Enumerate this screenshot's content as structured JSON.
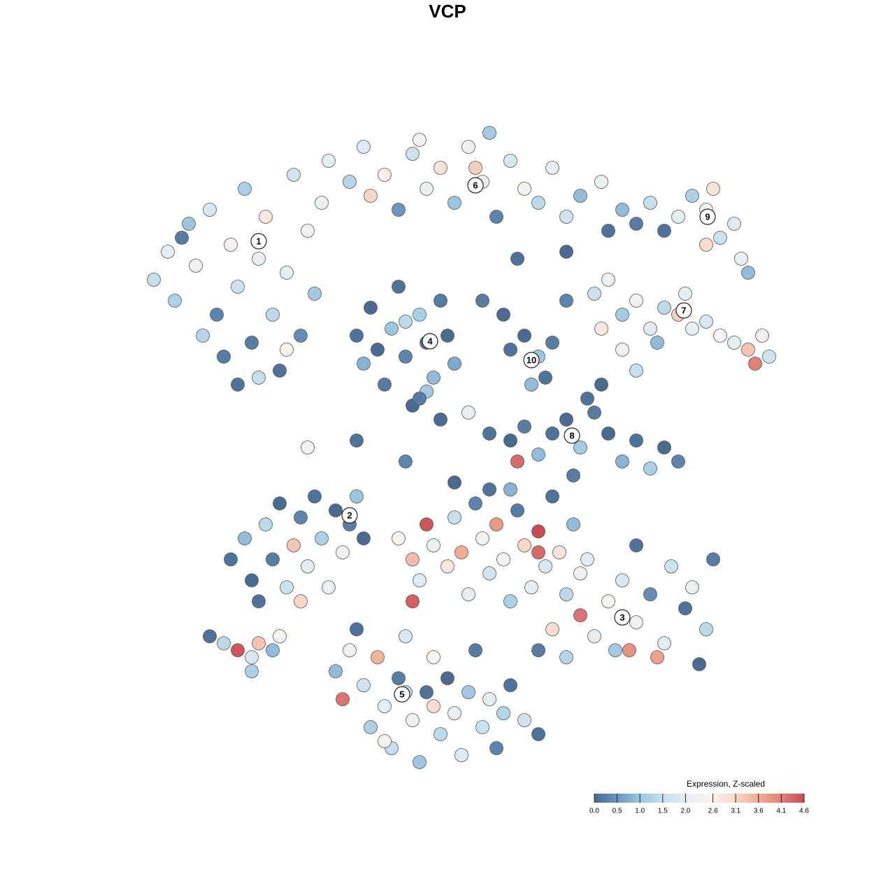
{
  "chart_data": {
    "type": "scatter",
    "title": "VCP",
    "xlim": [
      0,
      100
    ],
    "ylim": [
      0,
      100
    ],
    "x": [
      7,
      9,
      10,
      12,
      13,
      15,
      16,
      18,
      19,
      20,
      21,
      22,
      23,
      24,
      25,
      26,
      27,
      28,
      29,
      30,
      17,
      19,
      22,
      14,
      11,
      31,
      26,
      32,
      35,
      37,
      40,
      42,
      44,
      46,
      48,
      50,
      52,
      54,
      56,
      58,
      60,
      62,
      64,
      66,
      68,
      45,
      55,
      38,
      53,
      36,
      37,
      38,
      40,
      41,
      42,
      43,
      44,
      45,
      46,
      47,
      48,
      49,
      50,
      43,
      39,
      46,
      58,
      60,
      62,
      64,
      61,
      63,
      57,
      66,
      54,
      72,
      74,
      76,
      78,
      80,
      82,
      84,
      86,
      88,
      90,
      91,
      87,
      86,
      92,
      70,
      72,
      74,
      76,
      78,
      80,
      82,
      84,
      86,
      88,
      90,
      92,
      94,
      95,
      93,
      71,
      74,
      76,
      79,
      83,
      58,
      60,
      62,
      64,
      66,
      68,
      70,
      72,
      74,
      76,
      78,
      80,
      82,
      69,
      71,
      59,
      67,
      29,
      36,
      48,
      55,
      43,
      45,
      52,
      66,
      59,
      71,
      18,
      20,
      21,
      23,
      24,
      25,
      26,
      27,
      28,
      29,
      30,
      31,
      33,
      34,
      35,
      36,
      22,
      32,
      28,
      37,
      15,
      17,
      19,
      21,
      22,
      24,
      25,
      21,
      42,
      44,
      45,
      46,
      47,
      49,
      50,
      51,
      52,
      53,
      54,
      55,
      56,
      57,
      58,
      59,
      60,
      61,
      62,
      63,
      64,
      65,
      66,
      67,
      68,
      44,
      62,
      50,
      55,
      58,
      62,
      64,
      66,
      68,
      70,
      72,
      73,
      74,
      76,
      78,
      80,
      81,
      83,
      84,
      86,
      87,
      85,
      76,
      69,
      79,
      75,
      33,
      35,
      34,
      36,
      37,
      38,
      39,
      40,
      41,
      42,
      43,
      44,
      45,
      46,
      47,
      48,
      49,
      50,
      51,
      52,
      53,
      54,
      55,
      56,
      57,
      58,
      60,
      62,
      47,
      43,
      40
    ],
    "y": [
      75,
      79,
      72,
      83,
      77,
      85,
      70,
      80,
      74,
      88,
      66,
      78,
      84,
      70,
      62,
      76,
      90,
      67,
      82,
      73,
      64,
      60,
      61,
      67,
      81,
      86,
      65,
      92,
      89,
      94,
      90,
      85,
      93,
      88,
      91,
      86,
      94,
      89,
      84,
      92,
      88,
      86,
      91,
      84,
      87,
      95,
      96,
      87,
      91,
      67,
      63,
      71,
      60,
      68,
      74,
      64,
      57,
      70,
      66,
      61,
      72,
      67,
      63,
      69,
      65,
      59,
      65,
      67,
      64,
      66,
      60,
      61,
      70,
      72,
      72,
      82,
      85,
      83,
      86,
      82,
      84,
      87,
      85,
      81,
      83,
      78,
      88,
      80,
      76,
      73,
      75,
      70,
      72,
      68,
      71,
      70,
      68,
      69,
      67,
      66,
      65,
      67,
      64,
      63,
      68,
      65,
      62,
      66,
      73,
      52,
      54,
      50,
      53,
      55,
      51,
      56,
      53,
      49,
      52,
      48,
      51,
      49,
      58,
      60,
      49,
      47,
      51,
      52,
      55,
      53,
      49,
      58,
      56,
      79,
      78,
      89,
      35,
      38,
      32,
      40,
      35,
      43,
      31,
      37,
      41,
      34,
      44,
      38,
      42,
      36,
      40,
      44,
      29,
      31,
      29,
      38,
      24,
      23,
      22,
      21,
      23,
      22,
      24,
      19,
      38,
      35,
      32,
      40,
      37,
      34,
      41,
      36,
      30,
      43,
      38,
      33,
      40,
      35,
      29,
      42,
      37,
      31,
      39,
      34,
      44,
      36,
      30,
      40,
      33,
      29,
      36,
      46,
      45,
      45,
      22,
      25,
      21,
      27,
      24,
      29,
      22,
      32,
      26,
      30,
      23,
      34,
      28,
      31,
      25,
      35,
      20,
      37,
      35,
      21,
      22,
      19,
      22,
      15,
      25,
      17,
      11,
      21,
      14,
      8,
      18,
      24,
      12,
      6,
      16,
      21,
      10,
      18,
      13,
      7,
      16,
      22,
      11,
      15,
      8,
      13,
      17,
      12,
      10,
      14,
      16,
      9
    ],
    "values": [
      1.5,
      2.0,
      1.2,
      1.0,
      2.3,
      1.8,
      0.3,
      2.5,
      1.6,
      1.2,
      0.2,
      2.1,
      2.8,
      1.4,
      0.1,
      2.0,
      1.7,
      0.4,
      2.4,
      1.1,
      0.2,
      0.1,
      1.5,
      1.3,
      0.2,
      2.2,
      2.6,
      2.0,
      1.3,
      1.9,
      2.7,
      0.5,
      1.6,
      2.2,
      2.9,
      1.0,
      2.4,
      2.1,
      0.3,
      1.8,
      2.6,
      1.4,
      2.0,
      1.7,
      0.9,
      2.3,
      1.1,
      3.1,
      3.2,
      0.1,
      0.8,
      0.0,
      0.2,
      1.0,
      0.1,
      0.3,
      0.0,
      1.2,
      0.1,
      0.9,
      0.2,
      0.0,
      0.7,
      1.4,
      0.0,
      1.1,
      0.1,
      0.0,
      1.0,
      0.2,
      0.9,
      0.1,
      0.0,
      0.3,
      0.2,
      0.1,
      0.9,
      0.2,
      1.5,
      0.1,
      2.0,
      1.2,
      2.4,
      1.6,
      1.9,
      2.1,
      2.9,
      3.0,
      0.9,
      1.6,
      2.2,
      1.1,
      2.5,
      1.9,
      1.4,
      3.2,
      2.1,
      1.8,
      2.6,
      2.0,
      3.3,
      2.4,
      1.7,
      4.1,
      2.8,
      2.3,
      1.5,
      0.9,
      2.0,
      0.0,
      0.2,
      0.9,
      0.1,
      0.0,
      1.1,
      0.2,
      0.0,
      0.8,
      0.1,
      1.2,
      0.0,
      0.3,
      0.1,
      0.0,
      4.3,
      0.2,
      2.3,
      0.1,
      0.0,
      0.1,
      0.3,
      0.2,
      2.1,
      0.0,
      0.1,
      2.2,
      0.1,
      0.9,
      0.0,
      1.4,
      0.2,
      0.0,
      1.6,
      3.3,
      0.3,
      2.0,
      0.1,
      1.2,
      0.0,
      2.4,
      0.2,
      1.0,
      0.1,
      2.2,
      3.1,
      0.0,
      0.1,
      1.4,
      4.5,
      1.8,
      3.3,
      0.9,
      2.6,
      1.2,
      2.6,
      3.4,
      1.9,
      4.5,
      2.2,
      2.8,
      1.5,
      3.6,
      2.1,
      0.3,
      2.5,
      1.7,
      3.8,
      2.4,
      1.2,
      0.2,
      3.1,
      2.0,
      4.6,
      1.8,
      0.1,
      2.9,
      1.4,
      0.9,
      2.3,
      4.4,
      4.3,
      0.0,
      0.1,
      0.8,
      0.2,
      3.0,
      1.3,
      4.2,
      2.1,
      2.6,
      1.1,
      1.8,
      2.3,
      0.4,
      2.0,
      1.6,
      0.1,
      2.2,
      1.4,
      0.2,
      0.0,
      0.1,
      1.9,
      3.7,
      3.9,
      0.9,
      2.4,
      4.2,
      0.1,
      1.7,
      1.2,
      3.5,
      2.0,
      1.5,
      0.2,
      1.8,
      2.3,
      1.0,
      0.1,
      2.6,
      1.4,
      0.0,
      2.1,
      1.9,
      1.1,
      0.2,
      1.6,
      2.0,
      0.3,
      1.3,
      0.1,
      1.7,
      0.1,
      3.0,
      1.4,
      2.5
    ],
    "annotations": [
      {
        "text": "1",
        "x": 22,
        "y": 80.5
      },
      {
        "text": "6",
        "x": 53,
        "y": 88.5
      },
      {
        "text": "4",
        "x": 46.5,
        "y": 66.2
      },
      {
        "text": "10",
        "x": 61,
        "y": 63.5
      },
      {
        "text": "9",
        "x": 86.2,
        "y": 84
      },
      {
        "text": "7",
        "x": 82.8,
        "y": 70.6
      },
      {
        "text": "8",
        "x": 66.8,
        "y": 52.7
      },
      {
        "text": "2",
        "x": 35,
        "y": 41.3
      },
      {
        "text": "3",
        "x": 74,
        "y": 26.7
      },
      {
        "text": "5",
        "x": 42.5,
        "y": 15.7
      }
    ],
    "colorbar": {
      "title": "Expression, Z-scaled",
      "ticks": [
        {
          "value": 0,
          "label": "0.0"
        },
        0.5,
        {
          "value": 1,
          "label": "1.0"
        },
        1.5,
        {
          "value": 2,
          "label": "2.0"
        },
        2.6,
        3.1,
        3.6,
        4.1,
        4.6
      ],
      "colors": [
        "#4a6a92",
        "#6a96c0",
        "#9cc6e0",
        "#c5dfee",
        "#e4eef5",
        "#f9f3f0",
        "#f9d6c6",
        "#f2ab95",
        "#e17f78",
        "#c84a55"
      ]
    }
  }
}
